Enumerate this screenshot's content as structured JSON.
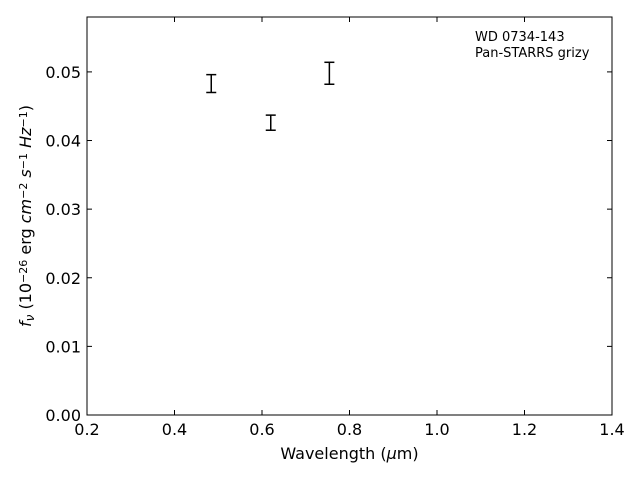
{
  "chart_data": {
    "type": "scatter",
    "xlabel": "Wavelength (μm)",
    "ylabel": "f_ν (10^-26 erg cm^-2 s^-1 Hz^-1)",
    "xlim": [
      0.2,
      1.4
    ],
    "ylim": [
      0.0,
      0.058
    ],
    "x_ticks": [
      0.2,
      0.4,
      0.6,
      0.8,
      1.0,
      1.2,
      1.4
    ],
    "x_tick_labels": [
      "0.2",
      "0.4",
      "0.6",
      "0.8",
      "1.0",
      "1.2",
      "1.4"
    ],
    "y_ticks": [
      0.0,
      0.01,
      0.02,
      0.03,
      0.04,
      0.05
    ],
    "y_tick_labels": [
      "0.00",
      "0.01",
      "0.02",
      "0.03",
      "0.04",
      "0.05"
    ],
    "grid": false,
    "annotation": {
      "lines": [
        "WD 0734-143",
        "Pan-STARRS grizy"
      ],
      "placement": "top-right"
    },
    "points": [
      {
        "x": 0.484,
        "y": 0.0483,
        "yerr_low": 0.0013,
        "yerr_high": 0.0013
      },
      {
        "x": 0.62,
        "y": 0.0426,
        "yerr_low": 0.0011,
        "yerr_high": 0.0011
      },
      {
        "x": 0.754,
        "y": 0.0498,
        "yerr_low": 0.0016,
        "yerr_high": 0.0016
      }
    ]
  }
}
